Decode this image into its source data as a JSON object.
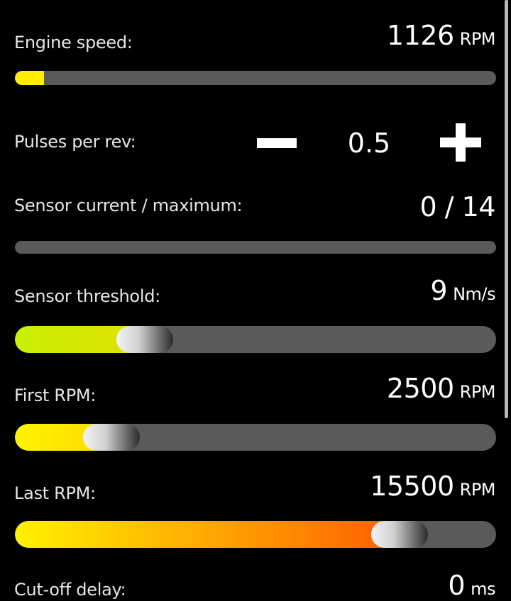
{
  "engine_speed": {
    "label": "Engine speed:",
    "value": "1126",
    "unit": "RPM",
    "progress_percent": 6
  },
  "pulses": {
    "label": "Pulses per rev:",
    "value": "0.5",
    "minus_icon": "minus-icon",
    "plus_icon": "plus-icon"
  },
  "sensor_current": {
    "label": "Sensor current / maximum:",
    "value": "0 / 14",
    "progress_percent": 0
  },
  "sensor_threshold": {
    "label": "Sensor threshold:",
    "value": "9",
    "unit": "Nm/s",
    "slider_percent": 27
  },
  "first_rpm": {
    "label": "First RPM:",
    "value": "2500",
    "unit": "RPM",
    "slider_percent": 20
  },
  "last_rpm": {
    "label": "Last RPM:",
    "value": "15500",
    "unit": "RPM",
    "slider_percent": 80
  },
  "cutoff_delay": {
    "label": "Cut-off delay:",
    "value": "0",
    "unit": "ms"
  },
  "colors": {
    "background": "#000000",
    "track": "#5a5a5a",
    "yellow": "#ffee00",
    "lime": "#c8f000",
    "orange": "#ff6a00"
  }
}
